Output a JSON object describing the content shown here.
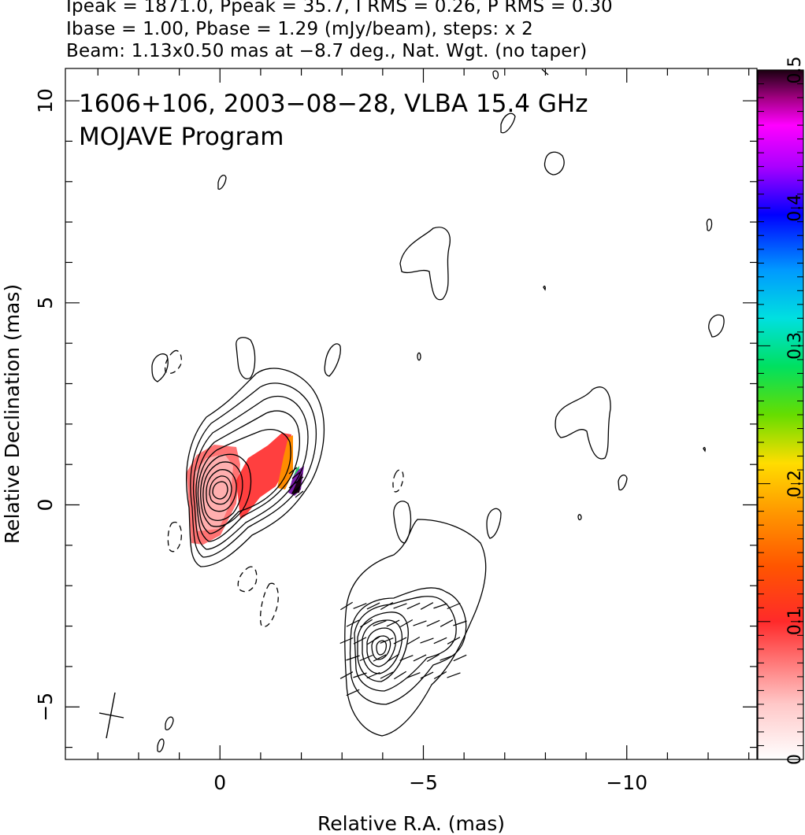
{
  "header": {
    "line1": "Ipeak = 1871.0, Ppeak = 35.7, I RMS = 0.26, P RMS = 0.30",
    "line2": "Ibase = 1.00, Pbase = 1.29 (mJy/beam), steps: x 2",
    "line3": "Beam: 1.13x0.50 mas at −8.7 deg., Nat. Wgt. (no taper)"
  },
  "chart_data": {
    "type": "heatmap",
    "title": "1606+106, 2003−08−28, VLBA 15.4 GHz",
    "subtitle": "MOJAVE Program",
    "xlabel": "Relative R.A. (mas)",
    "ylabel": "Relative Declination (mas)",
    "xlim": [
      3.8,
      -13.2
    ],
    "ylim": [
      -6.3,
      10.8
    ],
    "x_ticks": [
      0,
      -5,
      -10
    ],
    "x_tick_labels": [
      "0",
      "−5",
      "−10"
    ],
    "y_ticks": [
      -5,
      0,
      5,
      10
    ],
    "y_tick_labels": [
      "−5",
      "0",
      "5",
      "10"
    ],
    "colorbar": {
      "range": [
        0,
        0.5
      ],
      "ticks": [
        0,
        0.1,
        0.2,
        0.3,
        0.4,
        0.5
      ],
      "tick_labels": [
        "0",
        "0.1",
        "0.2",
        "0.3",
        "0.4",
        "0.5"
      ]
    },
    "core_peak": [
      0.0,
      0.2
    ],
    "knot_peak": [
      -4.1,
      -3.8
    ],
    "beam": {
      "major_mas": 1.13,
      "minor_mas": 0.5,
      "pa_deg": -8.7,
      "center": [
        2.6,
        -5.5
      ]
    },
    "colors": {
      "contour": "#000000",
      "fpol_low": "#ffb0b0",
      "fpol_mid": "#ff2020",
      "fpol_high": "#ff8800"
    }
  }
}
